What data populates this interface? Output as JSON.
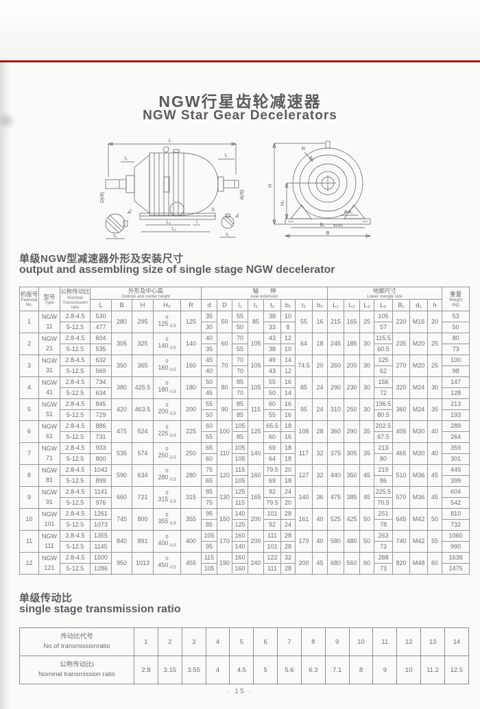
{
  "page": {
    "title_zh": "NGW行星齿轮减速器",
    "title_en": "NGW Star Gear Decelerators",
    "page_number": "· 15 ·"
  },
  "colors": {
    "rule_red": "#b01212"
  },
  "section1": {
    "heading_zh": "单级NGW型减速器外形及安装尺寸",
    "heading_en": "output and assembling size of single stage NGW decelerator"
  },
  "section2": {
    "heading_zh": "单级传动比",
    "heading_en": "single stage transmission ratio"
  },
  "diagram": {
    "side": {
      "L": "L",
      "l2": "l₂",
      "l1": "l₁",
      "Dr6": "D(r6)",
      "dr6": "d(r6)",
      "b2": "b₂",
      "t2": "t₂",
      "L2": "L₂",
      "L1": "L₁",
      "l": "l",
      "h": "h",
      "b1": "b₁",
      "t1": "t₁"
    },
    "front": {
      "R": "R",
      "H": "H",
      "H0": "H₀",
      "d4": "4-d₁",
      "B1": "B₁",
      "B": "B",
      "note": "螺栓基线"
    }
  },
  "main_table": {
    "header": {
      "col1": {
        "zh": "机座号",
        "en": [
          "Pedestal",
          "No."
        ]
      },
      "col2": {
        "zh": "型号",
        "en": [
          "Type"
        ]
      },
      "col3": {
        "zh": "公称传动比",
        "en": [
          "Nominal",
          "Transmission",
          "ratio"
        ]
      },
      "g1": {
        "zh": "外形及中心高",
        "en": "Outlook and center height",
        "cols": [
          "L",
          "B",
          "H",
          "H₀",
          "R"
        ]
      },
      "g2": {
        "zh": "轴　　伸",
        "en": "Axie extension",
        "cols": [
          "d",
          "D",
          "l₁",
          "l₂",
          "t₁",
          "b₁",
          "t₂",
          "b₂"
        ]
      },
      "g3": {
        "zh": "地脚尺寸",
        "en": "Lower mangle size",
        "cols": [
          "L₁",
          "L₂",
          "L₃",
          "L₀",
          "B₁",
          "d₁",
          "h"
        ]
      },
      "colw": {
        "zh": "重量",
        "en": [
          "Weight",
          "(kg)"
        ]
      }
    },
    "rows": [
      {
        "no": "1",
        "type": [
          "NGW",
          "11"
        ],
        "ratio": [
          "2.8-4.5",
          "5-12.5"
        ],
        "L": [
          "530",
          "477"
        ],
        "B": "280",
        "H": "295",
        "H0": {
          "top": "0",
          "main": "125",
          "dev": "-0.5"
        },
        "R": "125",
        "d": [
          "35",
          "30"
        ],
        "D": "50",
        "l1": [
          "55",
          "50"
        ],
        "l2": "85",
        "t1": [
          "38",
          "33"
        ],
        "b1": [
          "10",
          "8"
        ],
        "t2": "55",
        "b2": "16",
        "L1": "215",
        "L2": "165",
        "L3": "25",
        "L0": [
          "105",
          "57"
        ],
        "B1": "220",
        "d1": "M16",
        "h": "20",
        "w": [
          "53",
          "50"
        ]
      },
      {
        "no": "2",
        "type": [
          "NGW",
          "21"
        ],
        "ratio": [
          "2.8-4.5",
          "5-12.5"
        ],
        "L": [
          "604",
          "535"
        ],
        "B": "305",
        "H": "325",
        "H0": {
          "top": "0",
          "main": "140",
          "dev": "-0.5"
        },
        "R": "140",
        "d": [
          "40",
          "35"
        ],
        "D": "60",
        "l1": [
          "70",
          "55"
        ],
        "l2": "105",
        "t1": [
          "43",
          "38"
        ],
        "b1": [
          "12",
          "10"
        ],
        "t2": "64",
        "b2": "18",
        "L1": "245",
        "L2": "185",
        "L3": "30",
        "L0": [
          "115.5",
          "60.5"
        ],
        "B1": "235",
        "d1": "M20",
        "h": "25",
        "w": [
          "80",
          "73"
        ]
      },
      {
        "no": "3",
        "type": [
          "NGW",
          "31"
        ],
        "ratio": [
          "2.8-4.5",
          "5-12.5"
        ],
        "L": [
          "632",
          "569"
        ],
        "B": "350",
        "H": "365",
        "H0": {
          "top": "0",
          "main": "160",
          "dev": "-0.5"
        },
        "R": "160",
        "d": [
          "45",
          "40"
        ],
        "D": "70",
        "l1": [
          "70",
          "70"
        ],
        "l2": "105",
        "t1": [
          "49",
          "43"
        ],
        "b1": [
          "14",
          "12"
        ],
        "t2": "74.5",
        "b2": "20",
        "L1": "260",
        "L2": "200",
        "L3": "30",
        "L0": [
          "125",
          "62"
        ],
        "B1": "270",
        "d1": "M20",
        "h": "25",
        "w": [
          "100",
          "98"
        ]
      },
      {
        "no": "4",
        "type": [
          "NGW",
          "41"
        ],
        "ratio": [
          "2.8-4.5",
          "5-12.5"
        ],
        "L": [
          "734",
          "634"
        ],
        "B": "380",
        "H": "425.5",
        "H0": {
          "top": "0",
          "main": "180",
          "dev": "-0.5"
        },
        "R": "180",
        "d": [
          "50",
          "45"
        ],
        "D": "80",
        "l1": [
          "85",
          "70"
        ],
        "l2": "105",
        "t1": [
          "55",
          "50"
        ],
        "b1": [
          "16",
          "14"
        ],
        "t2": "85",
        "b2": "24",
        "L1": "290",
        "L2": "230",
        "L3": "30",
        "L0": [
          "156",
          "72"
        ],
        "B1": "320",
        "d1": "M24",
        "h": "30",
        "w": [
          "147",
          "128"
        ]
      },
      {
        "no": "5",
        "type": [
          "NGW",
          "51"
        ],
        "ratio": [
          "2.8-4.5",
          "5-12.5"
        ],
        "L": [
          "845",
          "729"
        ],
        "B": "420",
        "H": "463.5",
        "H0": {
          "top": "0",
          "main": "200",
          "dev": "-0.5"
        },
        "R": "200",
        "d": [
          "55",
          "50"
        ],
        "D": "90",
        "l1": [
          "85",
          "85"
        ],
        "l2": "115",
        "t1": [
          "60",
          "55"
        ],
        "b1": [
          "16",
          "16"
        ],
        "t2": "95",
        "b2": "24",
        "L1": "310",
        "L2": "250",
        "L3": "30",
        "L0": [
          "196.5",
          "80.5"
        ],
        "B1": "360",
        "d1": "M24",
        "h": "35",
        "w": [
          "213",
          "193"
        ]
      },
      {
        "no": "6",
        "type": [
          "NGW",
          "61"
        ],
        "ratio": [
          "2.8-4.5",
          "5-12.5"
        ],
        "L": [
          "886",
          "731"
        ],
        "B": "475",
        "H": "524",
        "H0": {
          "top": "0",
          "main": "225",
          "dev": "-0.5"
        },
        "R": "225",
        "d": [
          "60",
          "55"
        ],
        "D": "100",
        "l1": [
          "105",
          "85"
        ],
        "l2": "125",
        "t1": [
          "65.5",
          "60"
        ],
        "b1": [
          "18",
          "16"
        ],
        "t2": "108",
        "b2": "28",
        "L1": "360",
        "L2": "290",
        "L3": "35",
        "L0": [
          "202.5",
          "67.5"
        ],
        "B1": "405",
        "d1": "M30",
        "h": "40",
        "w": [
          "289",
          "264"
        ]
      },
      {
        "no": "7",
        "type": [
          "NGW",
          "71"
        ],
        "ratio": [
          "2.8-4.5",
          "5-12.5"
        ],
        "L": [
          "933",
          "800"
        ],
        "B": "535",
        "H": "574",
        "H0": {
          "top": "0",
          "main": "250",
          "dev": "-0.5"
        },
        "R": "250",
        "d": [
          "65",
          "60"
        ],
        "D": "110",
        "l1": [
          "105",
          "105"
        ],
        "l2": "140",
        "t1": [
          "69",
          "64"
        ],
        "b1": [
          "18",
          "18"
        ],
        "t2": "117",
        "b2": "32",
        "L1": "375",
        "L2": "305",
        "L3": "35",
        "L0": [
          "213",
          "80"
        ],
        "B1": "465",
        "d1": "M30",
        "h": "40",
        "w": [
          "359",
          "301"
        ]
      },
      {
        "no": "8",
        "type": [
          "NGW",
          "81"
        ],
        "ratio": [
          "2.8-4.5",
          "5-12.5"
        ],
        "L": [
          "1042",
          "899"
        ],
        "B": "590",
        "H": "634",
        "H0": {
          "top": "0",
          "main": "280",
          "dev": "-0.5"
        },
        "R": "280",
        "d": [
          "75",
          "65"
        ],
        "D": "120",
        "l1": [
          "115",
          "105"
        ],
        "l2": "160",
        "t1": [
          "79.5",
          "69"
        ],
        "b1": [
          "20",
          "18"
        ],
        "t2": "127",
        "b2": "32",
        "L1": "440",
        "L2": "350",
        "L3": "45",
        "L0": [
          "219",
          "86"
        ],
        "B1": "510",
        "d1": "M36",
        "h": "45",
        "w": [
          "449",
          "399"
        ]
      },
      {
        "no": "9",
        "type": [
          "NGW",
          "91"
        ],
        "ratio": [
          "2.8-4.5",
          "5-12.5"
        ],
        "L": [
          "1141",
          "976"
        ],
        "B": "660",
        "H": "721",
        "H0": {
          "top": "0",
          "main": "315",
          "dev": "-0.5"
        },
        "R": "315",
        "d": [
          "85",
          "75"
        ],
        "D": "130",
        "l1": [
          "125",
          "115"
        ],
        "l2": "165",
        "t1": [
          "92",
          "79.5"
        ],
        "b1": [
          "24",
          "20"
        ],
        "t2": "140",
        "b2": "36",
        "L1": "475",
        "L2": "385",
        "L3": "45",
        "L0": [
          "225.5",
          "70.5"
        ],
        "B1": "570",
        "d1": "M36",
        "h": "45",
        "w": [
          "604",
          "542"
        ]
      },
      {
        "no": "10",
        "type": [
          "NGW",
          "101"
        ],
        "ratio": [
          "2.8-4.5",
          "5-12.5"
        ],
        "L": [
          "1261",
          "1073"
        ],
        "B": "745",
        "H": "800",
        "H0": {
          "top": "0",
          "main": "355",
          "dev": "-0.5"
        },
        "R": "355",
        "d": [
          "95",
          "85"
        ],
        "D": "150",
        "l1": [
          "140",
          "125"
        ],
        "l2": "200",
        "t1": [
          "101",
          "92"
        ],
        "b1": [
          "28",
          "24"
        ],
        "t2": "161",
        "b2": "40",
        "L1": "525",
        "L2": "425",
        "L3": "50",
        "L0": [
          "251",
          "78"
        ],
        "B1": "645",
        "d1": "M42",
        "h": "50",
        "w": [
          "810",
          "732"
        ]
      },
      {
        "no": "11",
        "type": [
          "NGW",
          "111"
        ],
        "ratio": [
          "2.8-4.5",
          "5-12.5"
        ],
        "L": [
          "1355",
          "1145"
        ],
        "B": "840",
        "H": "891",
        "H0": {
          "top": "0",
          "main": "400",
          "dev": "-0.5"
        },
        "R": "400",
        "d": [
          "105",
          "95"
        ],
        "D": "170",
        "l1": [
          "160",
          "140"
        ],
        "l2": "200",
        "t1": [
          "111",
          "101"
        ],
        "b1": [
          "28",
          "28"
        ],
        "t2": "179",
        "b2": "40",
        "L1": "580",
        "L2": "480",
        "L3": "50",
        "L0": [
          "263",
          "73"
        ],
        "B1": "740",
        "d1": "M42",
        "h": "55",
        "w": [
          "1060",
          "990"
        ]
      },
      {
        "no": "12",
        "type": [
          "NGW",
          "121"
        ],
        "ratio": [
          "2.8-4.5",
          "5-12.5"
        ],
        "L": [
          "1500",
          "1286"
        ],
        "B": "950",
        "H": "1013",
        "H0": {
          "top": "0",
          "main": "450",
          "dev": "-0.5"
        },
        "R": "455",
        "d": [
          "115",
          "105"
        ],
        "D": "190",
        "l1": [
          "160",
          "160"
        ],
        "l2": "240",
        "t1": [
          "122",
          "111"
        ],
        "b1": [
          "32",
          "28"
        ],
        "t2": "200",
        "b2": "45",
        "L1": "680",
        "L2": "560",
        "L3": "60",
        "L0": [
          "288",
          "73"
        ],
        "B1": "820",
        "d1": "M48",
        "h": "60",
        "w": [
          "1638",
          "1475"
        ]
      }
    ]
  },
  "ratio_table": {
    "rows": [
      {
        "zh": "传动比代号",
        "en": "No.of transmissionratio",
        "values": [
          "1",
          "2",
          "3",
          "4",
          "5",
          "6",
          "7",
          "8",
          "9",
          "10",
          "11",
          "12",
          "13",
          "14"
        ]
      },
      {
        "zh": "公称传动比i",
        "en": "Nominal transmission ratio",
        "values": [
          "2.8",
          "3.15",
          "3.55",
          "4",
          "4.5",
          "5",
          "5.6",
          "6.3",
          "7.1",
          "8",
          "9",
          "10",
          "11.2",
          "12.5"
        ]
      }
    ]
  }
}
